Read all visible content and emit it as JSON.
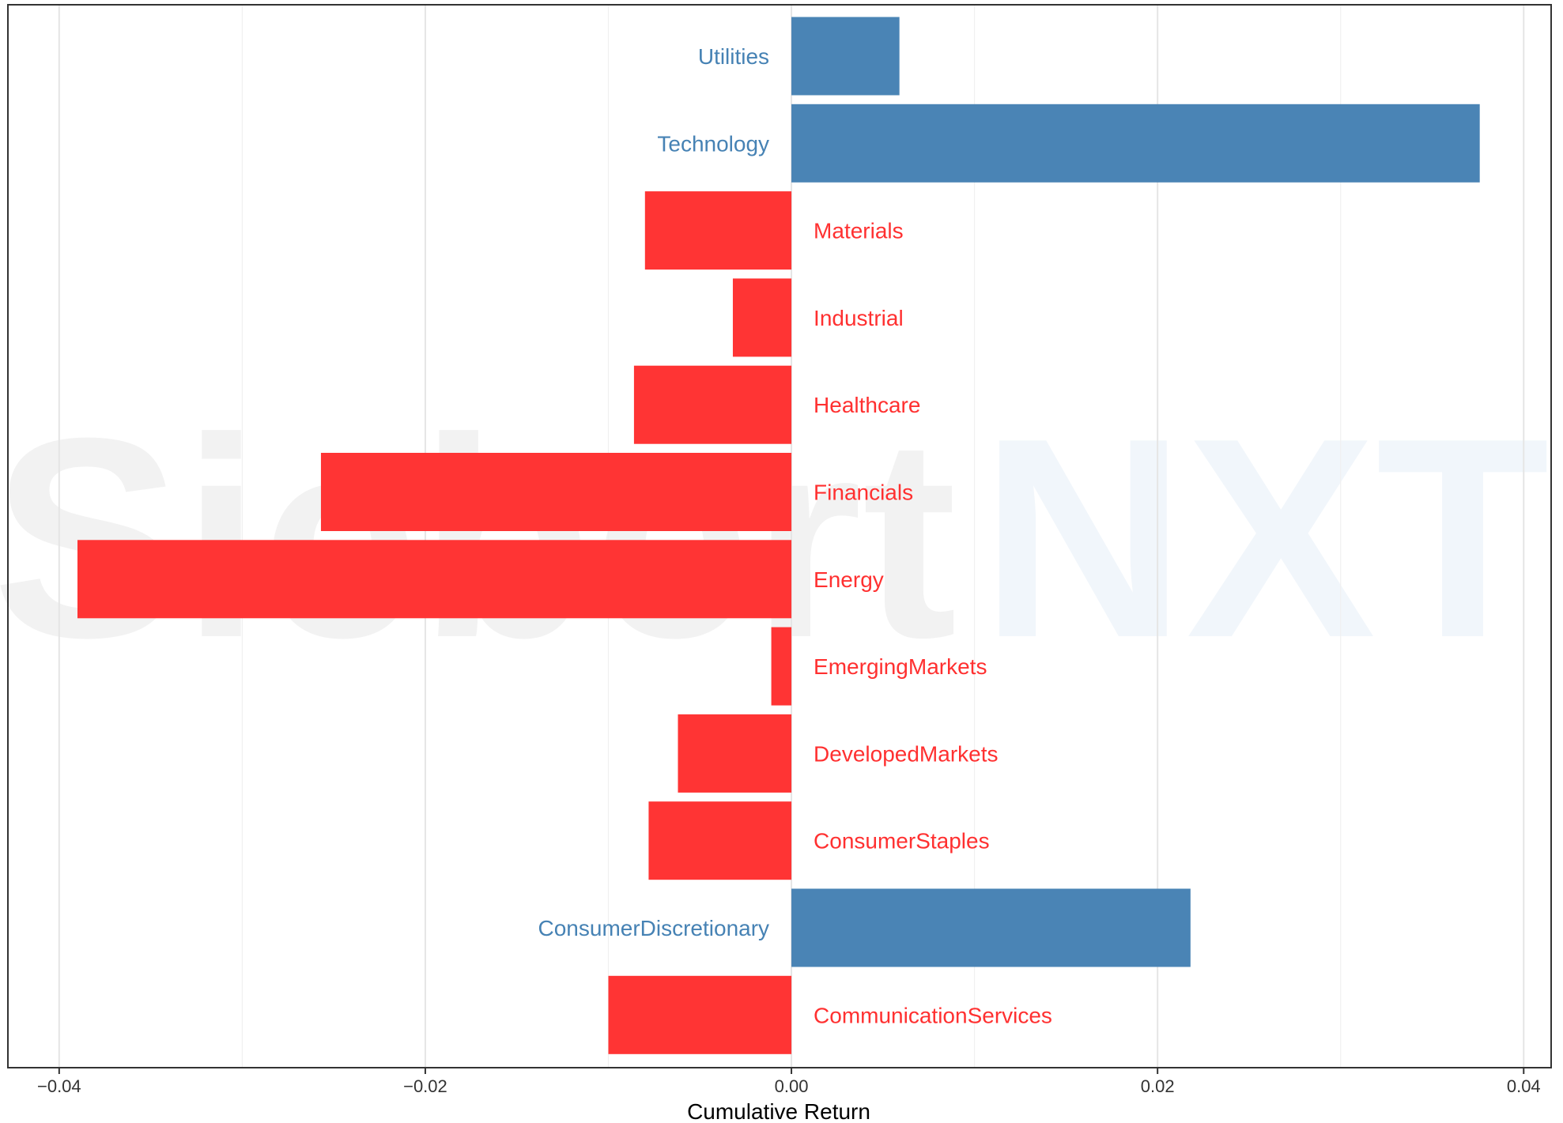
{
  "watermark": {
    "part1": "Siebert",
    "part2": "NXT",
    "color1": "#f2f2f2",
    "color2": "#f1f6fb"
  },
  "chart_data": {
    "type": "bar",
    "orientation": "horizontal",
    "xlabel": "Cumulative Return",
    "ylabel": "",
    "xlim": [
      -0.0428,
      0.0415
    ],
    "xticks": [
      -0.04,
      -0.02,
      0.0,
      0.02,
      0.04
    ],
    "xtick_labels": [
      "−0.04",
      "−0.02",
      "0.00",
      "0.02",
      "0.04"
    ],
    "grid": true,
    "positive_color": "#4682b4",
    "negative_color": "#ff3030",
    "categories": [
      "Utilities",
      "Technology",
      "Materials",
      "Industrial",
      "Healthcare",
      "Financials",
      "Energy",
      "EmergingMarkets",
      "DevelopedMarkets",
      "ConsumerStaples",
      "ConsumerDiscretionary",
      "CommunicationServices"
    ],
    "values": [
      0.0059,
      0.0376,
      -0.008,
      -0.0032,
      -0.0086,
      -0.0257,
      -0.039,
      -0.0011,
      -0.0062,
      -0.0078,
      0.0218,
      -0.01
    ]
  }
}
